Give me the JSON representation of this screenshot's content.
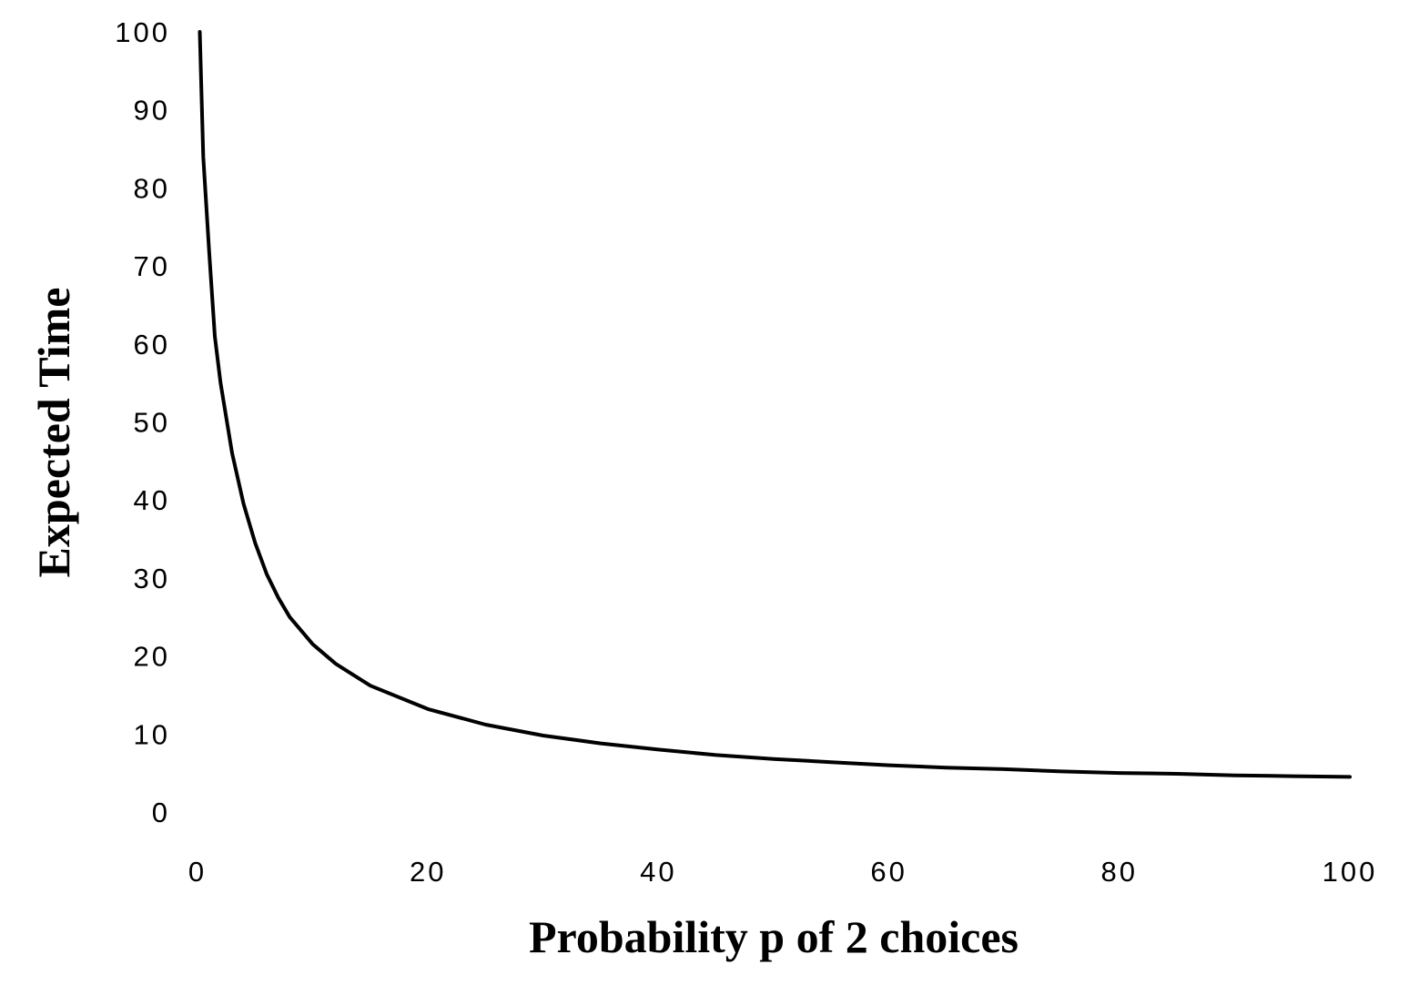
{
  "chart_data": {
    "type": "line",
    "title": "",
    "xlabel": "Probability p of 2 choices",
    "ylabel": "Expected Time",
    "xlim": [
      0,
      100
    ],
    "ylim": [
      0,
      100
    ],
    "x_ticks": [
      "0",
      "20",
      "40",
      "60",
      "80",
      "100"
    ],
    "y_ticks": [
      "0",
      "10",
      "20",
      "30",
      "40",
      "50",
      "60",
      "70",
      "80",
      "90",
      "100"
    ],
    "grid": false,
    "legend": "none",
    "line_color": "#000000",
    "series": [
      {
        "x": [
          0.2,
          0.5,
          1,
          1.5,
          2,
          3,
          4,
          5,
          6,
          7,
          8,
          10,
          12,
          15,
          20,
          25,
          30,
          35,
          40,
          45,
          50,
          55,
          60,
          65,
          70,
          75,
          80,
          85,
          90,
          95,
          100
        ],
        "values": [
          100,
          84,
          72,
          61,
          55,
          46,
          39.5,
          34.5,
          30.5,
          27.5,
          25,
          21.5,
          19,
          16.2,
          13.2,
          11.2,
          9.8,
          8.8,
          8.0,
          7.3,
          6.8,
          6.4,
          6.0,
          5.7,
          5.5,
          5.2,
          5.0,
          4.9,
          4.7,
          4.6,
          4.5
        ]
      }
    ]
  }
}
